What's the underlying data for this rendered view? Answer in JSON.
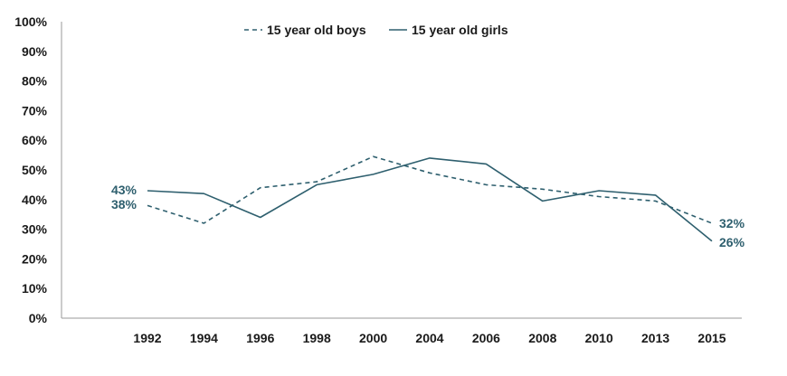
{
  "chart_data": {
    "type": "line",
    "categories": [
      "1992",
      "1994",
      "1996",
      "1998",
      "2000",
      "2004",
      "2006",
      "2008",
      "2010",
      "2013",
      "2015"
    ],
    "ylim": [
      0,
      100
    ],
    "y_ticks": [
      "0%",
      "10%",
      "20%",
      "30%",
      "40%",
      "50%",
      "60%",
      "70%",
      "80%",
      "90%",
      "100%"
    ],
    "grid": false,
    "legend_position": "top-center",
    "series": [
      {
        "name": "15 year old boys",
        "style": "dashed",
        "color": "#2e5f6e",
        "values": [
          38,
          32,
          44,
          46,
          54.5,
          49,
          45,
          43.5,
          41,
          39.5,
          32
        ],
        "end_labels": {
          "first": "38%",
          "last": "32%"
        }
      },
      {
        "name": "15 year old girls",
        "style": "solid",
        "color": "#2e5f6e",
        "values": [
          43,
          42,
          34,
          45,
          48.5,
          54,
          52,
          39.5,
          43,
          41.5,
          26
        ],
        "end_labels": {
          "first": "43%",
          "last": "26%"
        }
      }
    ]
  }
}
